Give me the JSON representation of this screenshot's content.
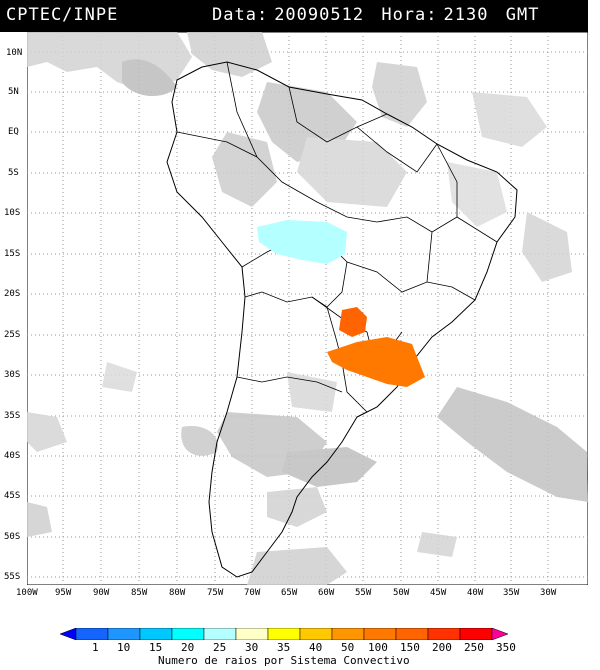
{
  "header": {
    "title": "CPTEC/INPE",
    "date_label": "Data:",
    "date_value": "20090512",
    "hour_label": "Hora:",
    "hour_value": "2130",
    "tz": "GMT"
  },
  "lat_ticks": [
    "10N",
    "5N",
    "EQ",
    "5S",
    "10S",
    "15S",
    "20S",
    "25S",
    "30S",
    "35S",
    "40S",
    "45S",
    "50S",
    "55S"
  ],
  "lon_ticks": [
    "100W",
    "95W",
    "90W",
    "85W",
    "80W",
    "75W",
    "70W",
    "65W",
    "60W",
    "55W",
    "50W",
    "45W",
    "40W",
    "35W",
    "30W"
  ],
  "colorbar": {
    "labels": [
      "1",
      "10",
      "15",
      "20",
      "25",
      "30",
      "35",
      "40",
      "50",
      "100",
      "150",
      "200",
      "250",
      "350"
    ],
    "colors": [
      "#0000ff",
      "#1464ff",
      "#1e96ff",
      "#00c8ff",
      "#00ffff",
      "#b4ffff",
      "#ffffc8",
      "#ffff00",
      "#ffc800",
      "#ff9600",
      "#ff7800",
      "#ff6400",
      "#ff3200",
      "#ff0000",
      "#ff0096"
    ],
    "caption": "Numero de raios por Sistema Convectivo"
  }
}
